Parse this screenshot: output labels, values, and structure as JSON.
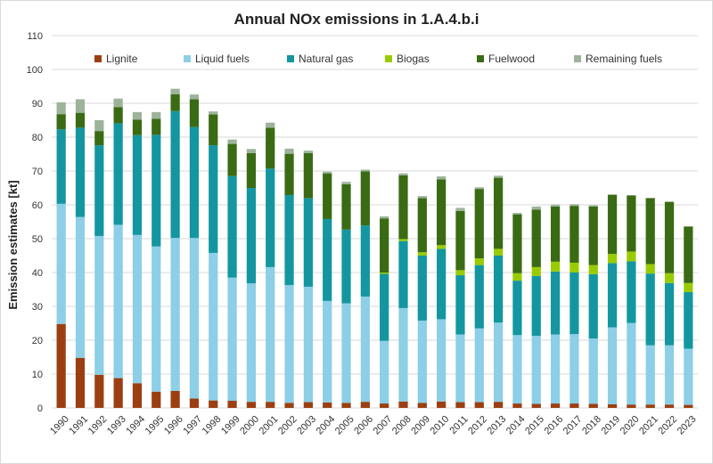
{
  "chart_data": {
    "type": "bar",
    "stacked": true,
    "title": "Annual NOx emissions in 1.A.4.b.i",
    "xlabel": "",
    "ylabel": "Emission estimates [kt]",
    "ylim": [
      0,
      110
    ],
    "ytick_step": 10,
    "yticks": [
      "0",
      "10",
      "20",
      "30",
      "40",
      "50",
      "60",
      "70",
      "80",
      "90",
      "100",
      "110"
    ],
    "grid": true,
    "legend_position": "top",
    "categories": [
      "1990",
      "1991",
      "1992",
      "1993",
      "1994",
      "1995",
      "1996",
      "1997",
      "1998",
      "1999",
      "2000",
      "2001",
      "2002",
      "2003",
      "2004",
      "2005",
      "2006",
      "2007",
      "2008",
      "2009",
      "2010",
      "2011",
      "2012",
      "2013",
      "2014",
      "2015",
      "2016",
      "2017",
      "2018",
      "2019",
      "2020",
      "2021",
      "2022",
      "2023"
    ],
    "series": [
      {
        "name": "Lignite",
        "color": "#9b3f12",
        "values": [
          24.8,
          14.8,
          9.8,
          8.8,
          7.3,
          4.8,
          5.0,
          2.8,
          2.2,
          2.1,
          1.8,
          1.8,
          1.5,
          1.7,
          1.6,
          1.5,
          1.8,
          1.3,
          1.9,
          1.5,
          1.9,
          1.7,
          1.7,
          1.8,
          1.3,
          1.2,
          1.3,
          1.3,
          1.2,
          1.1,
          1.0,
          1.0,
          1.0,
          0.9
        ]
      },
      {
        "name": "Liquid fuels",
        "color": "#8ccfe6",
        "values": [
          35.5,
          41.6,
          41.0,
          45.3,
          43.8,
          42.9,
          45.2,
          47.4,
          43.6,
          36.4,
          35.0,
          39.8,
          34.8,
          34.1,
          30.0,
          29.4,
          31.1,
          18.5,
          27.6,
          24.3,
          24.3,
          20.0,
          21.8,
          23.4,
          20.2,
          20.1,
          20.4,
          20.5,
          19.3,
          22.7,
          24.1,
          17.5,
          17.5,
          16.6
        ]
      },
      {
        "name": "Natural gas",
        "color": "#1496a0",
        "values": [
          22.0,
          26.4,
          26.8,
          30.0,
          29.5,
          33.0,
          37.5,
          32.8,
          31.8,
          30.0,
          28.2,
          29.1,
          26.6,
          26.2,
          24.2,
          21.8,
          21.0,
          19.8,
          19.8,
          19.2,
          20.8,
          17.5,
          18.7,
          19.8,
          16.1,
          17.7,
          18.6,
          18.2,
          19.0,
          19.0,
          18.2,
          21.2,
          18.4,
          16.7
        ]
      },
      {
        "name": "Biogas",
        "color": "#99cc00",
        "values": [
          0,
          0,
          0,
          0,
          0,
          0,
          0,
          0,
          0,
          0,
          0,
          0,
          0,
          0,
          0,
          0,
          0,
          0.4,
          0.6,
          1.0,
          1.1,
          1.5,
          2.0,
          2.0,
          2.2,
          2.6,
          2.9,
          2.9,
          2.7,
          2.7,
          2.9,
          2.8,
          2.9,
          2.7
        ]
      },
      {
        "name": "Fuelwood",
        "color": "#3a6b14",
        "values": [
          4.5,
          4.4,
          4.2,
          4.8,
          4.6,
          4.7,
          5.0,
          8.2,
          9.1,
          9.5,
          10.3,
          12.1,
          12.2,
          13.3,
          13.5,
          13.4,
          16.0,
          16.0,
          18.8,
          16.0,
          19.4,
          17.5,
          20.5,
          21.0,
          17.4,
          17.0,
          16.3,
          16.8,
          17.3,
          17.5,
          16.6,
          19.5,
          21.1,
          16.7
        ]
      },
      {
        "name": "Remaining fuels",
        "color": "#9db39a",
        "values": [
          3.5,
          4.0,
          3.2,
          2.5,
          2.2,
          2.0,
          1.6,
          1.4,
          0.9,
          1.3,
          1.2,
          1.5,
          1.5,
          0.7,
          0.5,
          0.7,
          0.5,
          0.6,
          0.6,
          0.6,
          0.9,
          0.9,
          0.5,
          0.6,
          0.4,
          0.9,
          0.6,
          0.5,
          0.4,
          0,
          0,
          0,
          0,
          0
        ]
      }
    ]
  }
}
